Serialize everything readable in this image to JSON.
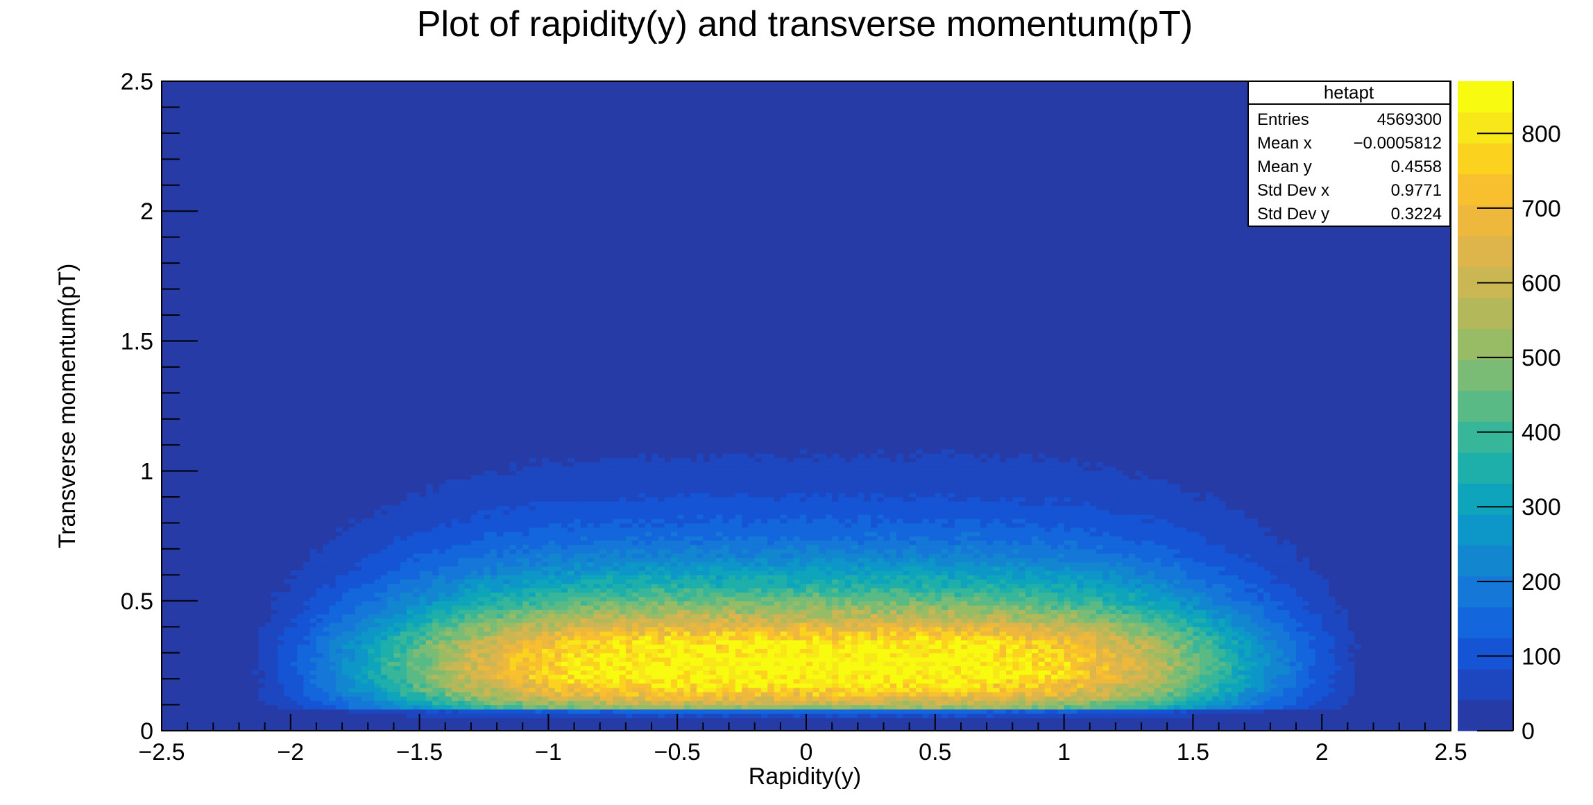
{
  "chart_data": {
    "type": "heatmap",
    "title": "Plot of rapidity(y) and transverse momentum(pT)",
    "xlabel": "Rapidity(y)",
    "ylabel": "Transverse momentum(pT)",
    "xlim": [
      -2.5,
      2.5
    ],
    "ylim": [
      0,
      2.5
    ],
    "zlim": [
      0,
      870
    ],
    "x_ticks": [
      "−2.5",
      "−2",
      "−1.5",
      "−1",
      "−0.5",
      "0",
      "0.5",
      "1",
      "1.5",
      "2",
      "2.5"
    ],
    "x_tick_values": [
      -2.5,
      -2,
      -1.5,
      -1,
      -0.5,
      0,
      0.5,
      1,
      1.5,
      2,
      2.5
    ],
    "y_ticks": [
      "0",
      "0.5",
      "1",
      "1.5",
      "2",
      "2.5"
    ],
    "y_tick_values": [
      0,
      0.5,
      1,
      1.5,
      2,
      2.5
    ],
    "z_ticks": [
      "0",
      "100",
      "200",
      "300",
      "400",
      "500",
      "600",
      "700",
      "800"
    ],
    "z_tick_values": [
      0,
      100,
      200,
      300,
      400,
      500,
      600,
      700,
      800
    ],
    "palette": [
      "#273ba6",
      "#1d47c0",
      "#1555d5",
      "#1366dc",
      "#1577d8",
      "#1287d0",
      "#0d97c8",
      "#0ea4bb",
      "#1eafaa",
      "#38b699",
      "#5aba86",
      "#7abc75",
      "#98bb66",
      "#b3b95b",
      "#cab653",
      "#deb54a",
      "#eeb83c",
      "#f8c02e",
      "#fbd31f",
      "#f8e81a",
      "#f8fa0f"
    ],
    "distribution": {
      "y_max_peak": 0.25,
      "y_half_width_core": 2.15,
      "edge_softness": 0.06,
      "pt_peak": 0.25,
      "pt_tail": 0.28,
      "rapidity_spread": 1.25
    },
    "stats_box": {
      "title": "hetapt",
      "rows": [
        {
          "label": "Entries",
          "value": "4569300"
        },
        {
          "label": "Mean x",
          "value": "−0.0005812"
        },
        {
          "label": "Mean y",
          "value": "0.4558"
        },
        {
          "label": "Std Dev x",
          "value": "0.9771"
        },
        {
          "label": "Std Dev y",
          "value": "0.3224"
        }
      ]
    }
  }
}
